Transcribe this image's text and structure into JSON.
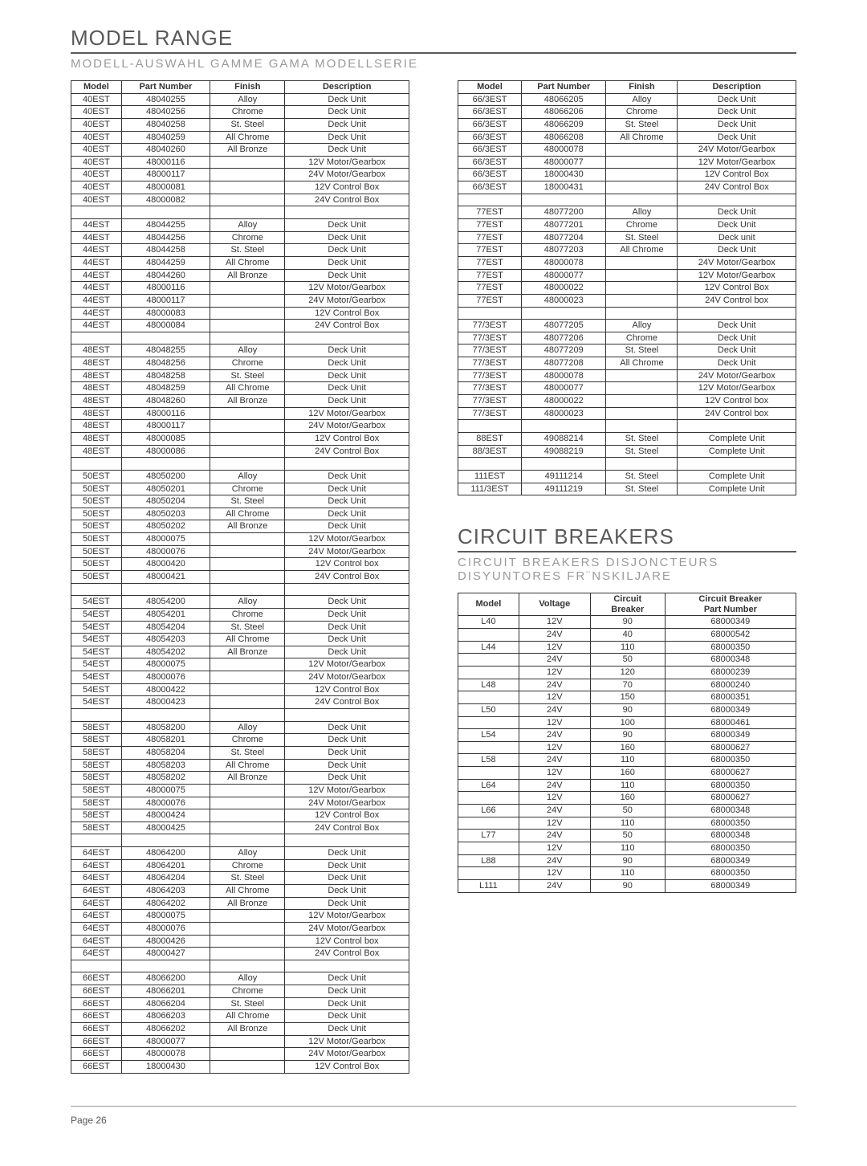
{
  "page_number": "Page 26",
  "model_range": {
    "title": "MODEL RANGE",
    "subtitle": "MODELL-AUSWAHL   GAMME   GAMA   MODELLSERIE",
    "headers": [
      "Model",
      "Part Number",
      "Finish",
      "Description"
    ],
    "left_groups": [
      [
        [
          "40EST",
          "48040255",
          "Alloy",
          "Deck Unit"
        ],
        [
          "40EST",
          "48040256",
          "Chrome",
          "Deck Unit"
        ],
        [
          "40EST",
          "48040258",
          "St. Steel",
          "Deck Unit"
        ],
        [
          "40EST",
          "48040259",
          "All Chrome",
          "Deck Unit"
        ],
        [
          "40EST",
          "48040260",
          "All Bronze",
          "Deck Unit"
        ],
        [
          "40EST",
          "48000116",
          "",
          "12V Motor/Gearbox"
        ],
        [
          "40EST",
          "48000117",
          "",
          "24V Motor/Gearbox"
        ],
        [
          "40EST",
          "48000081",
          "",
          "12V Control Box"
        ],
        [
          "40EST",
          "48000082",
          "",
          "24V Control Box"
        ]
      ],
      [
        [
          "44EST",
          "48044255",
          "Alloy",
          "Deck Unit"
        ],
        [
          "44EST",
          "48044256",
          "Chrome",
          "Deck Unit"
        ],
        [
          "44EST",
          "48044258",
          "St. Steel",
          "Deck Unit"
        ],
        [
          "44EST",
          "48044259",
          "All Chrome",
          "Deck Unit"
        ],
        [
          "44EST",
          "48044260",
          "All Bronze",
          "Deck Unit"
        ],
        [
          "44EST",
          "48000116",
          "",
          "12V Motor/Gearbox"
        ],
        [
          "44EST",
          "48000117",
          "",
          "24V Motor/Gearbox"
        ],
        [
          "44EST",
          "48000083",
          "",
          "12V Control Box"
        ],
        [
          "44EST",
          "48000084",
          "",
          "24V Control Box"
        ]
      ],
      [
        [
          "48EST",
          "48048255",
          "Alloy",
          "Deck Unit"
        ],
        [
          "48EST",
          "48048256",
          "Chrome",
          "Deck Unit"
        ],
        [
          "48EST",
          "48048258",
          "St. Steel",
          "Deck Unit"
        ],
        [
          "48EST",
          "48048259",
          "All Chrome",
          "Deck Unit"
        ],
        [
          "48EST",
          "48048260",
          "All Bronze",
          "Deck Unit"
        ],
        [
          "48EST",
          "48000116",
          "",
          "12V Motor/Gearbox"
        ],
        [
          "48EST",
          "48000117",
          "",
          "24V Motor/Gearbox"
        ],
        [
          "48EST",
          "48000085",
          "",
          "12V Control Box"
        ],
        [
          "48EST",
          "48000086",
          "",
          "24V Control Box"
        ]
      ],
      [
        [
          "50EST",
          "48050200",
          "Alloy",
          "Deck Unit"
        ],
        [
          "50EST",
          "48050201",
          "Chrome",
          "Deck Unit"
        ],
        [
          "50EST",
          "48050204",
          "St. Steel",
          "Deck Unit"
        ],
        [
          "50EST",
          "48050203",
          "All Chrome",
          "Deck Unit"
        ],
        [
          "50EST",
          "48050202",
          "All Bronze",
          "Deck Unit"
        ],
        [
          "50EST",
          "48000075",
          "",
          "12V Motor/Gearbox"
        ],
        [
          "50EST",
          "48000076",
          "",
          "24V Motor/Gearbox"
        ],
        [
          "50EST",
          "48000420",
          "",
          "12V Control box"
        ],
        [
          "50EST",
          "48000421",
          "",
          "24V Control Box"
        ]
      ],
      [
        [
          "54EST",
          "48054200",
          "Alloy",
          "Deck Unit"
        ],
        [
          "54EST",
          "48054201",
          "Chrome",
          "Deck Unit"
        ],
        [
          "54EST",
          "48054204",
          "St. Steel",
          "Deck Unit"
        ],
        [
          "54EST",
          "48054203",
          "All Chrome",
          "Deck Unit"
        ],
        [
          "54EST",
          "48054202",
          "All Bronze",
          "Deck Unit"
        ],
        [
          "54EST",
          "48000075",
          "",
          "12V Motor/Gearbox"
        ],
        [
          "54EST",
          "48000076",
          "",
          "24V Motor/Gearbox"
        ],
        [
          "54EST",
          "48000422",
          "",
          "12V Control Box"
        ],
        [
          "54EST",
          "48000423",
          "",
          "24V Control Box"
        ]
      ],
      [
        [
          "58EST",
          "48058200",
          "Alloy",
          "Deck Unit"
        ],
        [
          "58EST",
          "48058201",
          "Chrome",
          "Deck Unit"
        ],
        [
          "58EST",
          "48058204",
          "St. Steel",
          "Deck Unit"
        ],
        [
          "58EST",
          "48058203",
          "All Chrome",
          "Deck Unit"
        ],
        [
          "58EST",
          "48058202",
          "All Bronze",
          "Deck Unit"
        ],
        [
          "58EST",
          "48000075",
          "",
          "12V Motor/Gearbox"
        ],
        [
          "58EST",
          "48000076",
          "",
          "24V Motor/Gearbox"
        ],
        [
          "58EST",
          "48000424",
          "",
          "12V Control Box"
        ],
        [
          "58EST",
          "48000425",
          "",
          "24V Control Box"
        ]
      ],
      [
        [
          "64EST",
          "48064200",
          "Alloy",
          "Deck Unit"
        ],
        [
          "64EST",
          "48064201",
          "Chrome",
          "Deck Unit"
        ],
        [
          "64EST",
          "48064204",
          "St. Steel",
          "Deck Unit"
        ],
        [
          "64EST",
          "48064203",
          "All Chrome",
          "Deck Unit"
        ],
        [
          "64EST",
          "48064202",
          "All Bronze",
          "Deck Unit"
        ],
        [
          "64EST",
          "48000075",
          "",
          "12V Motor/Gearbox"
        ],
        [
          "64EST",
          "48000076",
          "",
          "24V Motor/Gearbox"
        ],
        [
          "64EST",
          "48000426",
          "",
          "12V Control box"
        ],
        [
          "64EST",
          "48000427",
          "",
          "24V Control Box"
        ]
      ],
      [
        [
          "66EST",
          "48066200",
          "Alloy",
          "Deck Unit"
        ],
        [
          "66EST",
          "48066201",
          "Chrome",
          "Deck Unit"
        ],
        [
          "66EST",
          "48066204",
          "St. Steel",
          "Deck Unit"
        ],
        [
          "66EST",
          "48066203",
          "All Chrome",
          "Deck Unit"
        ],
        [
          "66EST",
          "48066202",
          "All Bronze",
          "Deck Unit"
        ],
        [
          "66EST",
          "48000077",
          "",
          "12V Motor/Gearbox"
        ],
        [
          "66EST",
          "48000078",
          "",
          "24V Motor/Gearbox"
        ],
        [
          "66EST",
          "18000430",
          "",
          "12V Control Box"
        ]
      ]
    ],
    "right_groups": [
      [
        [
          "66/3EST",
          "48066205",
          "Alloy",
          "Deck Unit"
        ],
        [
          "66/3EST",
          "48066206",
          "Chrome",
          "Deck Unit"
        ],
        [
          "66/3EST",
          "48066209",
          "St. Steel",
          "Deck Unit"
        ],
        [
          "66/3EST",
          "48066208",
          "All Chrome",
          "Deck Unit"
        ],
        [
          "66/3EST",
          "48000078",
          "",
          "24V Motor/Gearbox"
        ],
        [
          "66/3EST",
          "48000077",
          "",
          "12V Motor/Gearbox"
        ],
        [
          "66/3EST",
          "18000430",
          "",
          "12V Control Box"
        ],
        [
          "66/3EST",
          "18000431",
          "",
          "24V Control Box"
        ]
      ],
      [
        [
          "77EST",
          "48077200",
          "Alloy",
          "Deck Unit"
        ],
        [
          "77EST",
          "48077201",
          "Chrome",
          "Deck Unit"
        ],
        [
          "77EST",
          "48077204",
          "St. Steel",
          "Deck unit"
        ],
        [
          "77EST",
          "48077203",
          "All Chrome",
          "Deck Unit"
        ],
        [
          "77EST",
          "48000078",
          "",
          "24V Motor/Gearbox"
        ],
        [
          "77EST",
          "48000077",
          "",
          "12V Motor/Gearbox"
        ],
        [
          "77EST",
          "48000022",
          "",
          "12V Control Box"
        ],
        [
          "77EST",
          "48000023",
          "",
          "24V Control box"
        ]
      ],
      [
        [
          "77/3EST",
          "48077205",
          "Alloy",
          "Deck Unit"
        ],
        [
          "77/3EST",
          "48077206",
          "Chrome",
          "Deck Unit"
        ],
        [
          "77/3EST",
          "48077209",
          "St. Steel",
          "Deck Unit"
        ],
        [
          "77/3EST",
          "48077208",
          "All Chrome",
          "Deck Unit"
        ],
        [
          "77/3EST",
          "48000078",
          "",
          "24V Motor/Gearbox"
        ],
        [
          "77/3EST",
          "48000077",
          "",
          "12V Motor/Gearbox"
        ],
        [
          "77/3EST",
          "48000022",
          "",
          "12V Control box"
        ],
        [
          "77/3EST",
          "48000023",
          "",
          "24V Control box"
        ]
      ],
      [
        [
          "88EST",
          "49088214",
          "St. Steel",
          "Complete Unit"
        ],
        [
          "88/3EST",
          "49088219",
          "St. Steel",
          "Complete Unit"
        ]
      ],
      [
        [
          "111EST",
          "49111214",
          "St. Steel",
          "Complete Unit"
        ],
        [
          "111/3EST",
          "49111219",
          "St. Steel",
          "Complete Unit"
        ]
      ]
    ]
  },
  "circuit_breakers": {
    "title": "CIRCUIT BREAKERS",
    "subtitle": "CIRCUIT BREAKERS   DISJONCTEURS   DISYUNTORES   FR¨NSKILJARE",
    "headers": [
      "Model",
      "Voltage",
      "Circuit Breaker",
      "Circuit Breaker Part Number"
    ],
    "rows": [
      [
        "L40",
        "12V",
        "90",
        "68000349"
      ],
      [
        "",
        "24V",
        "40",
        "68000542"
      ],
      [
        "L44",
        "12V",
        "110",
        "68000350"
      ],
      [
        "",
        "24V",
        "50",
        "68000348"
      ],
      [
        "",
        "12V",
        "120",
        "68000239"
      ],
      [
        "L48",
        "24V",
        "70",
        "68000240"
      ],
      [
        "",
        "12V",
        "150",
        "68000351"
      ],
      [
        "L50",
        "24V",
        "90",
        "68000349"
      ],
      [
        "",
        "12V",
        "100",
        "68000461"
      ],
      [
        "L54",
        "24V",
        "90",
        "68000349"
      ],
      [
        "",
        "12V",
        "160",
        "68000627"
      ],
      [
        "L58",
        "24V",
        "110",
        "68000350"
      ],
      [
        "",
        "12V",
        "160",
        "68000627"
      ],
      [
        "L64",
        "24V",
        "110",
        "68000350"
      ],
      [
        "",
        "12V",
        "160",
        "68000627"
      ],
      [
        "L66",
        "24V",
        "50",
        "68000348"
      ],
      [
        "",
        "12V",
        "110",
        "68000350"
      ],
      [
        "L77",
        "24V",
        "50",
        "68000348"
      ],
      [
        "",
        "12V",
        "110",
        "68000350"
      ],
      [
        "L88",
        "24V",
        "90",
        "68000349"
      ],
      [
        "",
        "12V",
        "110",
        "68000350"
      ],
      [
        "L111",
        "24V",
        "90",
        "68000349"
      ]
    ]
  }
}
